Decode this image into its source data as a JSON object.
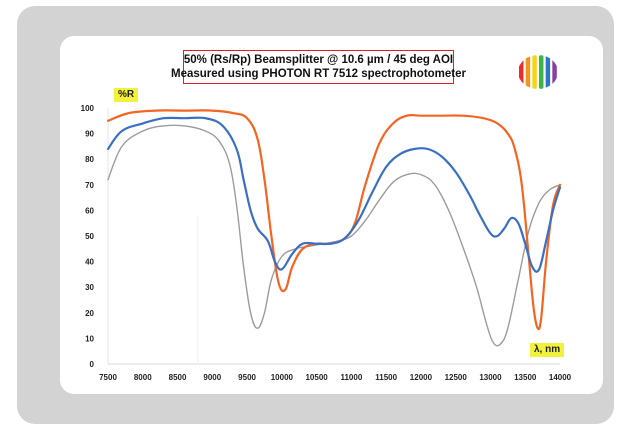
{
  "colors": {
    "frame": "#d3d3d3",
    "series_orange": "#f26522",
    "series_blue": "#3a6fc4",
    "series_gray": "#9c9c9c",
    "title_border": "#e02020",
    "tag_fill": "#f2f23a"
  },
  "logo": {
    "name": "rainbow-stripes-logo",
    "colors": [
      "#ee2a2a",
      "#f7941d",
      "#f5d415",
      "#3bb54a",
      "#2b78c6",
      "#8b3fa0"
    ]
  },
  "chart_data": {
    "type": "line",
    "title_line1": "50% (Rs/Rp) Beamsplitter @ 10.6 µm / 45 deg AOI",
    "title_line2": "Measured using PHOTON RT 7512 spectrophotometer",
    "ylabel": "%R",
    "xlabel": "λ, nm",
    "xlim": [
      7500,
      14000
    ],
    "ylim": [
      0,
      100
    ],
    "grid": false,
    "legend": "none",
    "xticks": [
      "7500",
      "8000",
      "8500",
      "9000",
      "9500",
      "10000",
      "10500",
      "11000",
      "11500",
      "12000",
      "12500",
      "13000",
      "13500",
      "14000"
    ],
    "yticks": [
      "0",
      "10",
      "20",
      "30",
      "40",
      "50",
      "60",
      "70",
      "80",
      "90",
      "100"
    ],
    "series": [
      {
        "color": "#f26522",
        "x": [
          7500,
          7800,
          8200,
          8600,
          9000,
          9300,
          9500,
          9650,
          9750,
          9850,
          9950,
          10050,
          10150,
          10300,
          10500,
          10700,
          10900,
          11050,
          11200,
          11400,
          11600,
          11800,
          12000,
          12300,
          12600,
          12900,
          13100,
          13250,
          13350,
          13450,
          13550,
          13620,
          13680,
          13730,
          13800,
          13900,
          14000
        ],
        "y": [
          95,
          98,
          99,
          99,
          99,
          98,
          96,
          88,
          72,
          50,
          32,
          29,
          38,
          45,
          47,
          47,
          49,
          55,
          70,
          86,
          94,
          97,
          97,
          97,
          97,
          96,
          94,
          90,
          84,
          70,
          42,
          22,
          14,
          18,
          40,
          62,
          70
        ]
      },
      {
        "color": "#3a6fc4",
        "x": [
          7500,
          7700,
          8000,
          8300,
          8600,
          8900,
          9150,
          9350,
          9450,
          9550,
          9650,
          9800,
          9900,
          10000,
          10150,
          10300,
          10500,
          10700,
          10900,
          11100,
          11300,
          11500,
          11700,
          11900,
          12100,
          12300,
          12500,
          12700,
          12850,
          13000,
          13100,
          13200,
          13300,
          13400,
          13500,
          13600,
          13700,
          13800,
          13900,
          14000
        ],
        "y": [
          84,
          91,
          94,
          96,
          96,
          96,
          93,
          84,
          72,
          60,
          53,
          48,
          40,
          37,
          43,
          47,
          47,
          47,
          49,
          56,
          67,
          77,
          82,
          84,
          84,
          81,
          75,
          66,
          58,
          51,
          50,
          53,
          57,
          55,
          47,
          38,
          37,
          48,
          60,
          69
        ]
      },
      {
        "color": "#9c9c9c",
        "x": [
          7500,
          7700,
          8000,
          8300,
          8600,
          8900,
          9100,
          9250,
          9350,
          9450,
          9550,
          9650,
          9750,
          9850,
          10000,
          10200,
          10400,
          10600,
          10800,
          11000,
          11200,
          11400,
          11600,
          11800,
          12000,
          12200,
          12400,
          12600,
          12800,
          12950,
          13050,
          13150,
          13250,
          13400,
          13550,
          13700,
          13850,
          14000
        ],
        "y": [
          72,
          85,
          91,
          93,
          93,
          91,
          87,
          78,
          62,
          38,
          20,
          14,
          20,
          33,
          42,
          45,
          46,
          47,
          48,
          50,
          56,
          64,
          71,
          74,
          74,
          70,
          60,
          46,
          30,
          15,
          8,
          8,
          14,
          33,
          52,
          63,
          68,
          70
        ]
      }
    ]
  }
}
